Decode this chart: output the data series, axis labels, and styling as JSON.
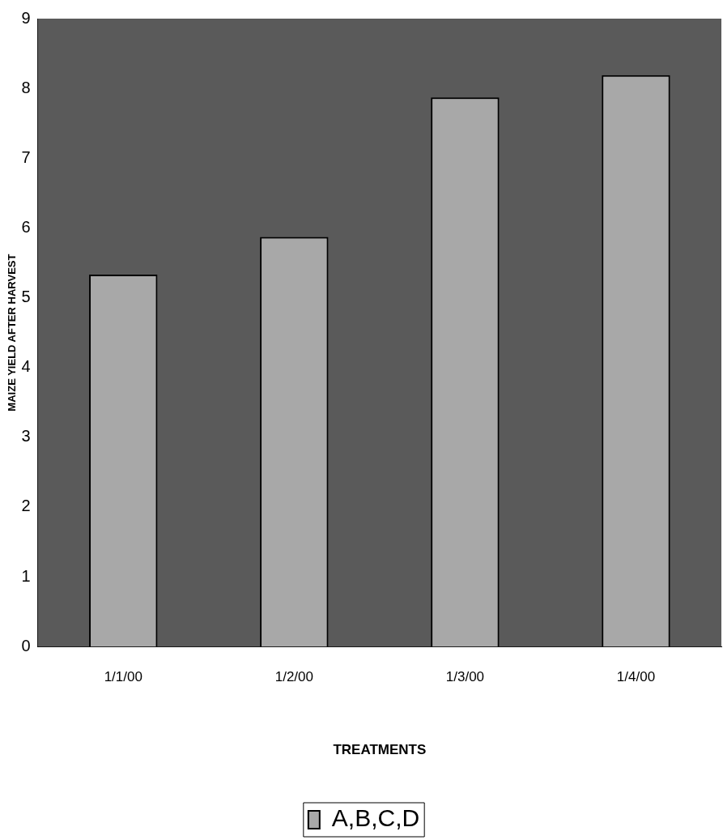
{
  "chart_data": {
    "type": "bar",
    "xlabel": "TREATMENTS",
    "ylabel": "MAIZE YIELD AFTER HARVEST",
    "categories": [
      "1/1/00",
      "1/2/00",
      "1/3/00",
      "1/4/00"
    ],
    "series": [
      {
        "name": "A,B,C,D",
        "color": "#a8a8a8",
        "values": [
          5.33,
          5.87,
          7.87,
          8.19
        ]
      }
    ],
    "ylim": [
      0,
      9
    ],
    "yticks": [
      0,
      1,
      2,
      3,
      4,
      5,
      6,
      7,
      8,
      9
    ],
    "grid": false,
    "legend": "bottom"
  }
}
